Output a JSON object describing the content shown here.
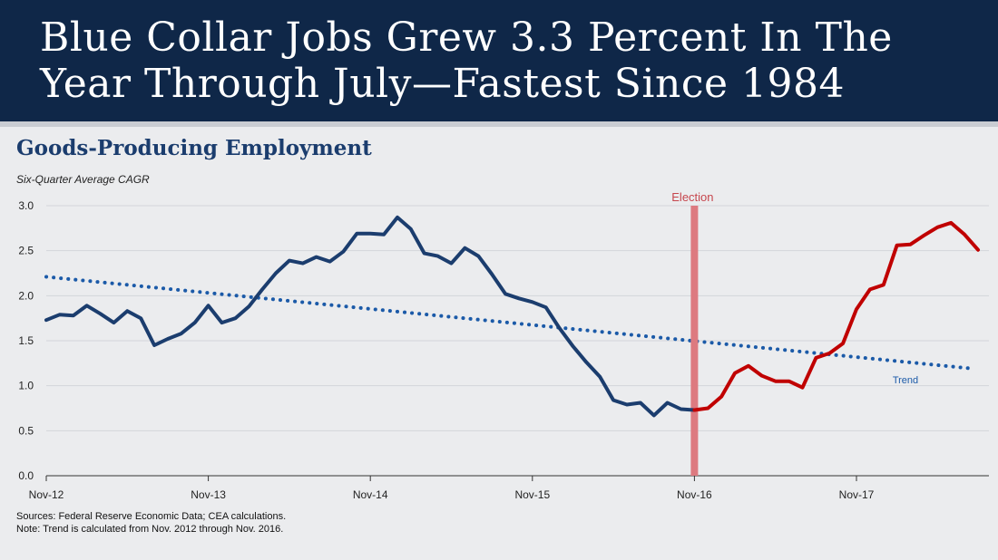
{
  "banner": {
    "title": "Blue Collar Jobs Grew 3.3 Percent In The Year Through July—Fastest Since 1984",
    "background": "#0f2748"
  },
  "chart_data": {
    "type": "line",
    "title": "Goods-Producing Employment",
    "subtitle": "Six-Quarter Average CAGR",
    "xlabel": "",
    "ylabel": "",
    "ylim": [
      0,
      3.0
    ],
    "yticks": [
      "0.0",
      "0.5",
      "1.0",
      "1.5",
      "2.0",
      "2.5",
      "3.0"
    ],
    "xticks": [
      "Nov-12",
      "Nov-13",
      "Nov-14",
      "Nov-15",
      "Nov-16",
      "Nov-17"
    ],
    "x_start": "Nov-12",
    "x_end": "Jul-18",
    "grid": "horizontal",
    "series": [
      {
        "color": "#1b3d6e",
        "values": [
          1.73,
          1.79,
          1.78,
          1.89,
          1.8,
          1.7,
          1.83,
          1.75,
          1.45,
          1.52,
          1.58,
          1.7,
          1.89,
          1.7,
          1.75,
          1.88,
          2.07,
          2.25,
          2.39,
          2.36,
          2.43,
          2.38,
          2.49,
          2.69,
          2.69,
          2.68,
          2.87,
          2.74,
          2.47,
          2.44,
          2.36,
          2.53,
          2.44,
          2.24,
          2.02,
          1.97,
          1.93,
          1.87,
          1.64,
          1.44,
          1.26,
          1.1,
          0.84,
          0.79,
          0.81,
          0.67,
          0.81,
          0.74,
          0.73
        ]
      },
      {
        "color": "#c00000",
        "values": [
          0.73,
          0.75,
          0.88,
          1.14,
          1.22,
          1.11,
          1.05,
          1.05,
          0.98,
          1.31,
          1.36,
          1.47,
          1.85,
          2.07,
          2.12,
          2.56,
          2.57,
          2.67,
          2.76,
          2.81,
          2.68,
          2.51
        ]
      }
    ],
    "trend": {
      "label": "Trend",
      "color": "#1b5aa8",
      "start": 2.21,
      "end": 1.19
    },
    "election": {
      "label": "Election",
      "x": "Nov-16",
      "color": "#dd7a80"
    }
  },
  "notes": {
    "sources": "Sources: Federal Reserve Economic Data; CEA calculations.",
    "note": "Note: Trend is calculated from Nov. 2012 through Nov. 2016."
  }
}
